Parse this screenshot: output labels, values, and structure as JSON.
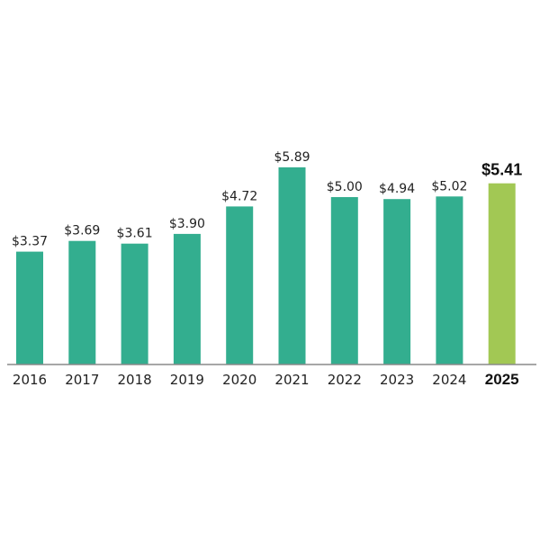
{
  "chart_data": {
    "type": "bar",
    "categories": [
      "2016",
      "2017",
      "2018",
      "2019",
      "2020",
      "2021",
      "2022",
      "2023",
      "2024",
      "2025"
    ],
    "values": [
      3.37,
      3.69,
      3.61,
      3.9,
      4.72,
      5.89,
      5.0,
      4.94,
      5.02,
      5.41
    ],
    "value_labels": [
      "$3.37",
      "$3.69",
      "$3.61",
      "$3.90",
      "$4.72",
      "$5.89",
      "$5.00",
      "$4.94",
      "$5.02",
      "$5.41"
    ],
    "highlight_index": 9,
    "title": "",
    "xlabel": "",
    "ylabel": "",
    "ylim": [
      0,
      6.5
    ],
    "grid": false,
    "colors": {
      "bar": "#33ae8f",
      "highlight": "#a2c854",
      "axis": "#8a8a8a"
    }
  }
}
